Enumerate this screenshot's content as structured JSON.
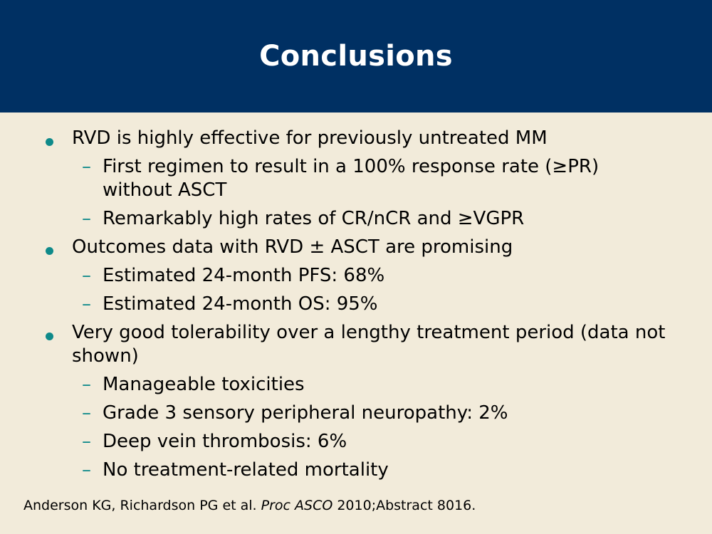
{
  "slide": {
    "title": "Conclusions",
    "colors": {
      "header_bg": "#003063",
      "body_bg": "#F2EBDA",
      "bullet_accent": "#0F8A8A"
    }
  },
  "bullets": [
    {
      "text": "RVD is highly effective for previously untreated MM",
      "subs": [
        "First regimen to result in a 100% response rate (≥PR) without ASCT",
        "Remarkably high rates of CR/nCR and ≥VGPR"
      ]
    },
    {
      "text": "Outcomes data with RVD ± ASCT are promising",
      "subs": [
        "Estimated 24-month PFS: 68%",
        "Estimated 24-month OS: 95%"
      ]
    },
    {
      "text": "Very good tolerability over a lengthy treatment period (data not shown)",
      "subs": [
        "Manageable toxicities",
        "Grade 3 sensory peripheral neuropathy: 2%",
        "Deep vein thrombosis: 6%",
        "No treatment-related mortality"
      ]
    }
  ],
  "sub_marker": "–",
  "footnote": {
    "authors": "Anderson KG, Richardson PG et al. ",
    "journal": "Proc ASCO",
    "citation": " 2010;Abstract 8016."
  }
}
